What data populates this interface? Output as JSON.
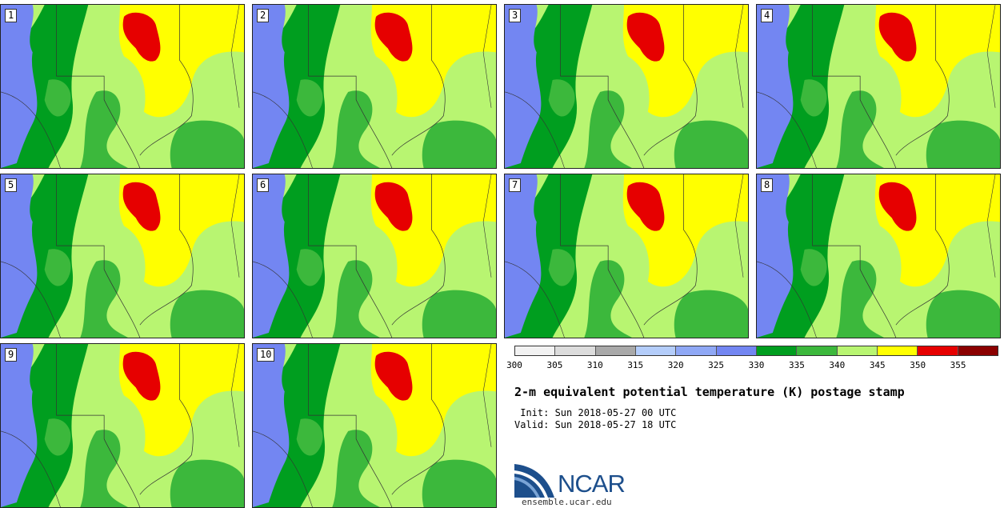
{
  "stamps": [
    {
      "id": "s1",
      "label": "1"
    },
    {
      "id": "s2",
      "label": "2"
    },
    {
      "id": "s3",
      "label": "3"
    },
    {
      "id": "s4",
      "label": "4"
    },
    {
      "id": "s5",
      "label": "5"
    },
    {
      "id": "s6",
      "label": "6"
    },
    {
      "id": "s7",
      "label": "7"
    },
    {
      "id": "s8",
      "label": "8"
    },
    {
      "id": "s9",
      "label": "9"
    },
    {
      "id": "s10",
      "label": "10"
    }
  ],
  "colorbar": {
    "colors": [
      "#f2f2f2",
      "#dcdcdc",
      "#a9a9a9",
      "#b4cdfa",
      "#8fa8f5",
      "#7386f2",
      "#009e1f",
      "#3cb83c",
      "#b8f571",
      "#ffff00",
      "#e60000",
      "#8b0000"
    ],
    "ticks": [
      "300",
      "305",
      "310",
      "315",
      "320",
      "325",
      "330",
      "335",
      "340",
      "345",
      "350",
      "355"
    ]
  },
  "title": "2-m equivalent potential temperature (K) postage stamp",
  "init": " Init: Sun 2018-05-27 00 UTC",
  "valid": "Valid: Sun 2018-05-27 18 UTC",
  "logo": {
    "text": "NCAR",
    "url": "ensemble.ucar.edu"
  }
}
